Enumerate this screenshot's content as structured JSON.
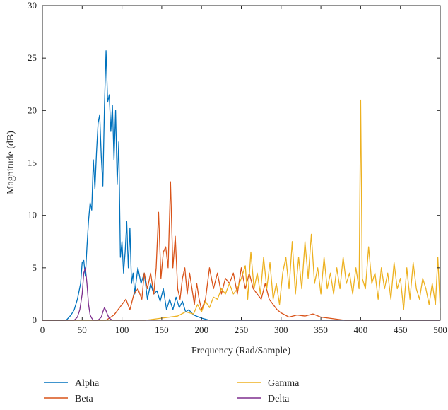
{
  "chart_data": {
    "type": "line",
    "xlabel": "Frequency (Rad/Sample)",
    "ylabel": "Magnitude (dB)",
    "xlim": [
      0,
      500
    ],
    "ylim": [
      0,
      30
    ],
    "xticks": [
      "0",
      "50",
      "100",
      "150",
      "200",
      "250",
      "300",
      "350",
      "400",
      "450",
      "500"
    ],
    "yticks": [
      "0",
      "5",
      "10",
      "15",
      "20",
      "25",
      "30"
    ],
    "grid": false,
    "legend_position": "bottom",
    "series": [
      {
        "name": "Alpha",
        "color": "#0072BD",
        "x": [
          0,
          30,
          36,
          40,
          44,
          48,
          50,
          52,
          54,
          56,
          58,
          60,
          62,
          64,
          66,
          68,
          70,
          72,
          74,
          76,
          78,
          80,
          82,
          84,
          86,
          88,
          90,
          92,
          94,
          96,
          98,
          100,
          102,
          104,
          106,
          108,
          110,
          112,
          114,
          116,
          118,
          120,
          124,
          128,
          132,
          136,
          140,
          144,
          148,
          152,
          156,
          160,
          164,
          168,
          172,
          176,
          180,
          184,
          190,
          200,
          210,
          230,
          260,
          300,
          350,
          400,
          450,
          500
        ],
        "y": [
          0,
          0,
          0.5,
          1,
          2,
          3.5,
          5.5,
          5.7,
          4.2,
          7,
          9.5,
          11.2,
          10.5,
          15.3,
          12.5,
          16,
          18.8,
          19.6,
          15.6,
          12.8,
          20.5,
          25.7,
          20.8,
          21.5,
          18,
          20.5,
          15.3,
          20,
          13,
          17,
          6,
          7.5,
          4.5,
          6.5,
          9.4,
          5,
          8.8,
          3.5,
          4.5,
          2.5,
          3.8,
          5,
          3.5,
          4.5,
          2,
          3.5,
          2.5,
          2.8,
          1.8,
          3,
          1,
          2,
          1,
          2.2,
          1.2,
          1.8,
          0.8,
          1,
          0.5,
          0.2,
          0,
          0,
          0,
          0,
          0,
          0,
          0,
          0
        ]
      },
      {
        "name": "Beta",
        "color": "#D95319",
        "x": [
          0,
          80,
          90,
          95,
          100,
          105,
          110,
          115,
          120,
          125,
          128,
          132,
          136,
          140,
          143,
          146,
          149,
          152,
          155,
          158,
          161,
          164,
          167,
          170,
          173,
          176,
          179,
          182,
          185,
          188,
          191,
          194,
          197,
          200,
          205,
          210,
          215,
          220,
          225,
          230,
          235,
          240,
          245,
          250,
          255,
          260,
          265,
          270,
          275,
          280,
          285,
          290,
          295,
          300,
          310,
          320,
          330,
          340,
          350,
          360,
          370,
          380,
          400,
          450,
          500
        ],
        "y": [
          0,
          0,
          0.5,
          1,
          1.5,
          2,
          1,
          2.5,
          3,
          2,
          4.5,
          3,
          4.5,
          2.5,
          5,
          10.3,
          4,
          6.5,
          7,
          5,
          13.2,
          5,
          8,
          3,
          2,
          4,
          5,
          2.5,
          4.5,
          3,
          1.5,
          3.5,
          2,
          1,
          2,
          5,
          3,
          4.5,
          2.5,
          4,
          3.5,
          4.5,
          2.5,
          5,
          3,
          4.5,
          3,
          2.5,
          2,
          3.5,
          2,
          1.5,
          1,
          0.7,
          0.3,
          0.5,
          0.4,
          0.6,
          0.3,
          0.2,
          0.1,
          0,
          0,
          0,
          0
        ]
      },
      {
        "name": "Gamma",
        "color": "#EDB120",
        "x": [
          0,
          130,
          150,
          170,
          180,
          190,
          195,
          200,
          205,
          210,
          215,
          220,
          225,
          230,
          235,
          240,
          245,
          250,
          255,
          258,
          262,
          266,
          270,
          274,
          278,
          282,
          286,
          290,
          294,
          298,
          302,
          306,
          310,
          314,
          318,
          322,
          326,
          330,
          334,
          338,
          342,
          346,
          350,
          354,
          358,
          362,
          366,
          370,
          374,
          378,
          382,
          386,
          390,
          394,
          398,
          400,
          402,
          406,
          410,
          414,
          418,
          422,
          426,
          430,
          434,
          438,
          442,
          446,
          450,
          454,
          458,
          462,
          466,
          470,
          474,
          478,
          482,
          486,
          490,
          494,
          497,
          500
        ],
        "y": [
          0,
          0,
          0.2,
          0.4,
          0.8,
          0.6,
          1.5,
          0.8,
          1.8,
          1.2,
          2.2,
          2,
          3,
          2.5,
          3.5,
          2.5,
          3,
          4,
          5.2,
          2,
          6.5,
          3,
          4.5,
          2.5,
          6,
          3,
          5.5,
          2,
          3.5,
          1.5,
          4.5,
          6,
          3,
          7.5,
          2.5,
          6,
          3,
          7.5,
          4,
          8.2,
          3.5,
          5,
          2.5,
          6,
          3,
          4.5,
          2.5,
          5,
          3,
          6,
          3.5,
          4.5,
          2.5,
          5,
          3,
          21,
          4,
          3,
          7,
          3.5,
          4.5,
          2,
          5,
          3,
          4.5,
          2,
          5.5,
          3,
          4,
          1,
          5,
          2,
          5.5,
          3,
          2,
          4,
          3,
          1.5,
          3.5,
          1.5,
          6,
          1
        ]
      },
      {
        "name": "Delta",
        "color": "#7E2F8E",
        "x": [
          0,
          40,
          44,
          47,
          50,
          52,
          54,
          56,
          58,
          60,
          62,
          64,
          70,
          74,
          76,
          78,
          80,
          82,
          84,
          88,
          100,
          200,
          300,
          400,
          500
        ],
        "y": [
          0,
          0,
          0.3,
          1,
          2.5,
          4.5,
          5,
          3.5,
          1.5,
          0.5,
          0.2,
          0,
          0,
          0.3,
          0.8,
          1.2,
          0.9,
          0.5,
          0.2,
          0,
          0,
          0,
          0,
          0,
          0
        ]
      }
    ]
  }
}
